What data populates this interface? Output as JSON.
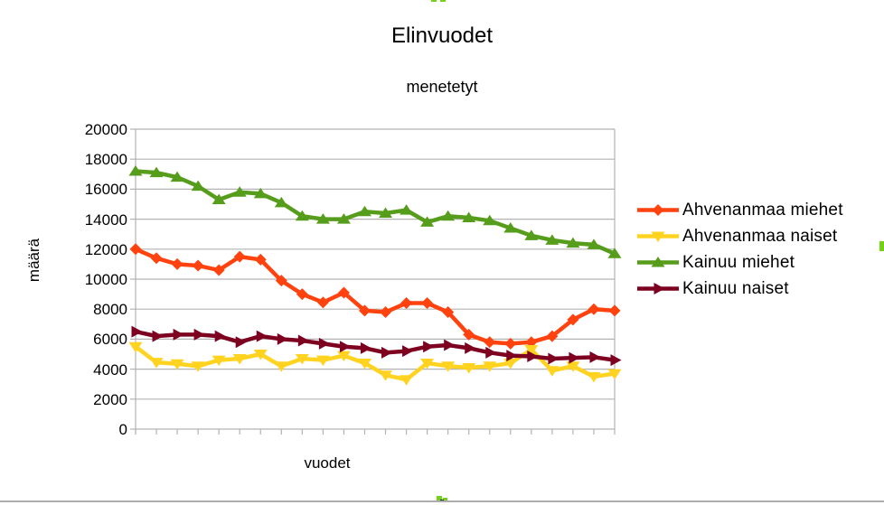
{
  "chart_data": {
    "type": "line",
    "title": "Elinvuodet",
    "subtitle": "menetetyt",
    "xlabel": "vuodet",
    "ylabel": "määrä",
    "ylim": [
      0,
      20000
    ],
    "ytick_interval": 2000,
    "ytick_labels": [
      "0",
      "2000",
      "4000",
      "6000",
      "8000",
      "10000",
      "12000",
      "14000",
      "16000",
      "18000",
      "20000"
    ],
    "n_points": 24,
    "x_categories_labeled": false,
    "grid": "horizontal",
    "legend_position": "right",
    "axis_color": "#b3b3b3",
    "text_color": "#000000",
    "series": [
      {
        "name": "Ahvenanmaa miehet",
        "color": "#FF420E",
        "marker": "diamond",
        "values": [
          12000,
          11400,
          11000,
          10900,
          10600,
          11500,
          11300,
          9900,
          9000,
          8450,
          9100,
          7900,
          7800,
          8400,
          8400,
          7800,
          6300,
          5800,
          5700,
          5800,
          6200,
          7300,
          8000,
          7900
        ]
      },
      {
        "name": "Ahvenanmaa naiset",
        "color": "#FFD320",
        "marker": "triangle-down",
        "values": [
          5500,
          4450,
          4350,
          4200,
          4600,
          4700,
          5000,
          4200,
          4700,
          4600,
          4900,
          4400,
          3600,
          3300,
          4400,
          4200,
          4100,
          4200,
          4400,
          5300,
          3900,
          4200,
          3500,
          3700
        ]
      },
      {
        "name": "Kainuu miehet",
        "color": "#579D1C",
        "marker": "triangle-up",
        "values": [
          17200,
          17100,
          16800,
          16200,
          15300,
          15800,
          15700,
          15100,
          14200,
          14000,
          14000,
          14500,
          14400,
          14600,
          13800,
          14200,
          14100,
          13900,
          13400,
          12900,
          12600,
          12400,
          12300,
          11700
        ]
      },
      {
        "name": "Kainuu naiset",
        "color": "#7E0021",
        "marker": "triangle-right",
        "values": [
          6500,
          6200,
          6300,
          6300,
          6200,
          5800,
          6200,
          6000,
          5900,
          5700,
          5500,
          5400,
          5100,
          5200,
          5500,
          5600,
          5400,
          5100,
          4900,
          4850,
          4700,
          4750,
          4800,
          4600
        ]
      }
    ]
  },
  "selection_handles": {
    "color": "#73D216"
  }
}
